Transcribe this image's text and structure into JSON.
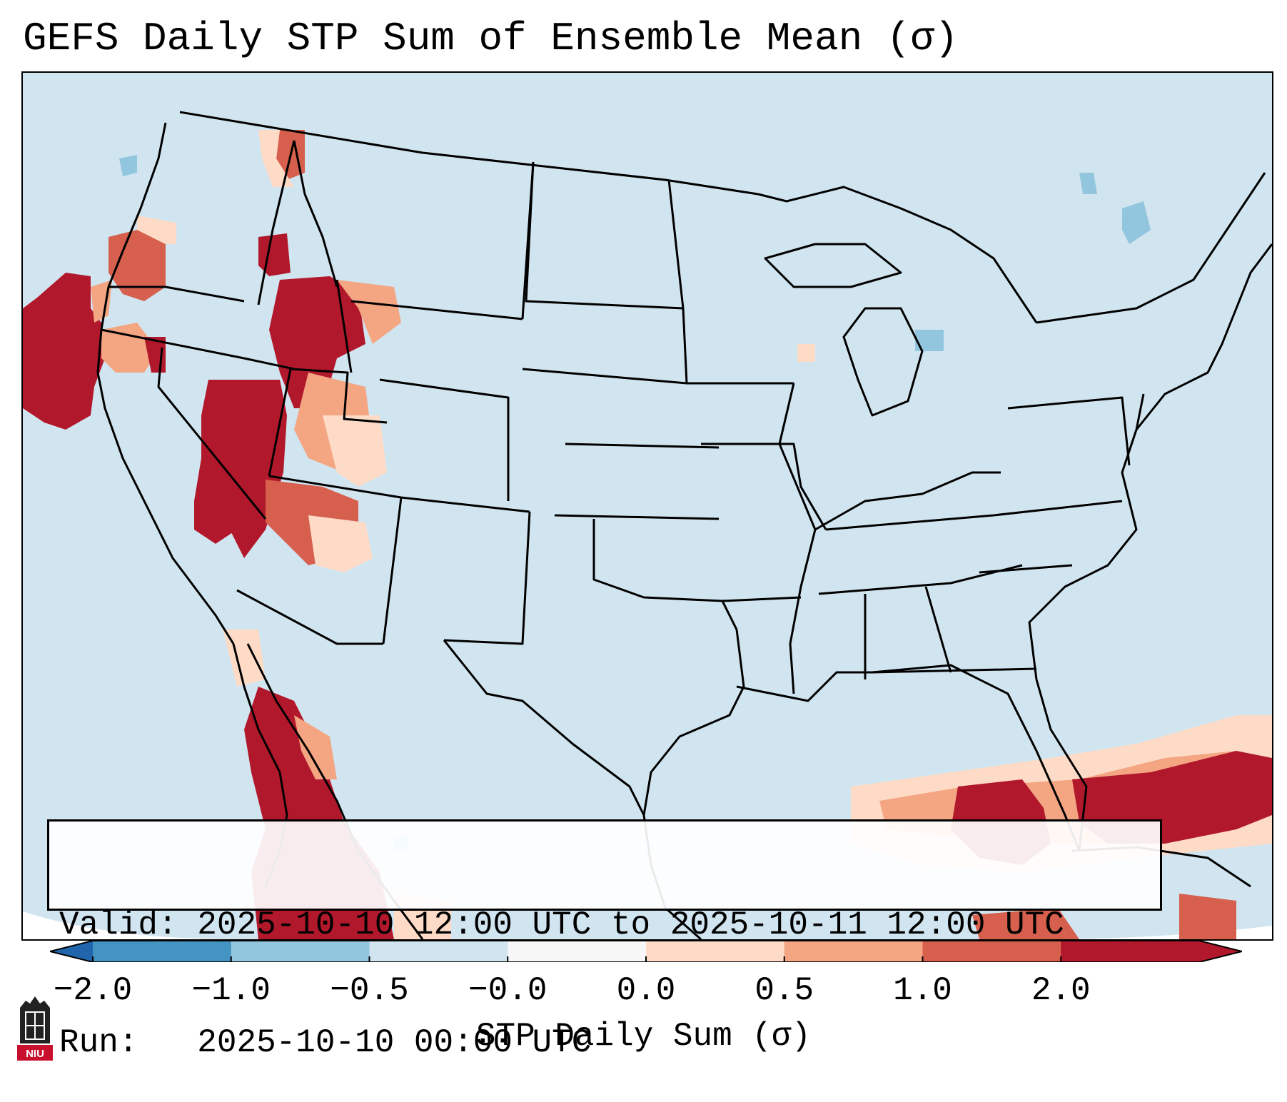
{
  "title": "GEFS Daily STP Sum of Ensemble Mean (σ)",
  "info": {
    "valid_label": "Valid:",
    "valid_value": "2025-10-10 12:00 UTC to 2025-10-11 12:00 UTC",
    "run_label": "Run:",
    "run_value": "2025-10-10 00:00 UTC"
  },
  "colorbar": {
    "label": "STP Daily Sum (σ)",
    "ticks": [
      "−2.0",
      "−1.0",
      "−0.5",
      "−0.0",
      "0.0",
      "0.5",
      "1.0",
      "2.0"
    ],
    "colors": [
      "#4393c3",
      "#92c5de",
      "#d1e5f0",
      "#f7f7f7",
      "#fddbc7",
      "#f4a582",
      "#d6604d",
      "#b2182b"
    ],
    "under_color": "#2166ac",
    "over_color": "#b2182b"
  },
  "map": {
    "background_color": "#d1e5f0",
    "region": "Contiguous United States",
    "line_color": "#000000"
  },
  "logo": {
    "text": "NIU",
    "color": "#c8102e"
  }
}
